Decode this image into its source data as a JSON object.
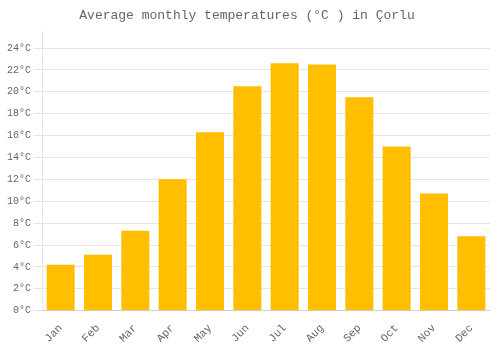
{
  "chart_data": {
    "type": "bar",
    "title": "Average monthly temperatures (°C ) in Çorlu",
    "categories": [
      "Jan",
      "Feb",
      "Mar",
      "Apr",
      "May",
      "Jun",
      "Jul",
      "Aug",
      "Sep",
      "Oct",
      "Nov",
      "Dec"
    ],
    "values": [
      4.2,
      5.1,
      7.3,
      12.0,
      16.3,
      20.5,
      22.6,
      22.5,
      19.5,
      15.0,
      10.7,
      6.8
    ],
    "color": "#FFBE00",
    "ylim": [
      0,
      25.5
    ],
    "yticks": [
      {
        "value": 0,
        "label": "0°C"
      },
      {
        "value": 2,
        "label": "2°C"
      },
      {
        "value": 4,
        "label": "4°C"
      },
      {
        "value": 6,
        "label": "6°C"
      },
      {
        "value": 8,
        "label": "8°C"
      },
      {
        "value": 10,
        "label": "10°C"
      },
      {
        "value": 12,
        "label": "12°C"
      },
      {
        "value": 14,
        "label": "14°C"
      },
      {
        "value": 16,
        "label": "16°C"
      },
      {
        "value": 18,
        "label": "18°C"
      },
      {
        "value": 20,
        "label": "20°C"
      },
      {
        "value": 22,
        "label": "22°C"
      },
      {
        "value": 24,
        "label": "24°C"
      }
    ],
    "grid": true
  }
}
